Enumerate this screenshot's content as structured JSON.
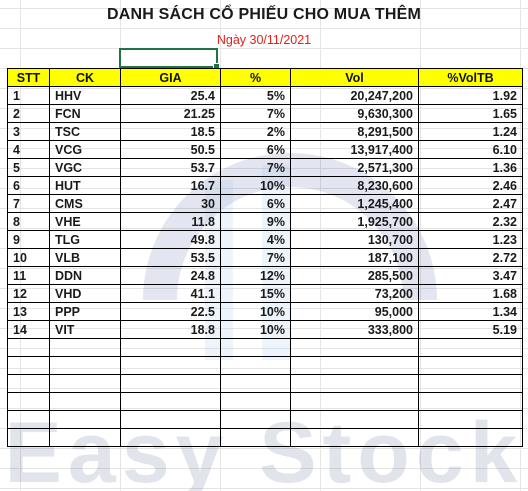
{
  "title": "DANH SÁCH CỔ PHIẾU CHO MUA THÊM",
  "date": "Ngày 30/11/2021",
  "watermark": "Easy Stock",
  "colors": {
    "header_bg": "#ffff00",
    "date_text": "#e0201a",
    "selection": "#217346"
  },
  "table": {
    "headers": [
      "STT",
      "CK",
      "GIA",
      "%",
      "Vol",
      "%VolTB"
    ],
    "rows": [
      [
        "1",
        "HHV",
        "25.4",
        "5%",
        "20,247,200",
        "1.92"
      ],
      [
        "2",
        "FCN",
        "21.25",
        "7%",
        "9,630,300",
        "1.65"
      ],
      [
        "3",
        "TSC",
        "18.5",
        "2%",
        "8,291,500",
        "1.24"
      ],
      [
        "4",
        "VCG",
        "50.5",
        "6%",
        "13,917,400",
        "6.10"
      ],
      [
        "5",
        "VGC",
        "53.7",
        "7%",
        "2,571,300",
        "1.36"
      ],
      [
        "6",
        "HUT",
        "16.7",
        "10%",
        "8,230,600",
        "2.46"
      ],
      [
        "7",
        "CMS",
        "30",
        "6%",
        "1,245,400",
        "2.47"
      ],
      [
        "8",
        "VHE",
        "11.8",
        "9%",
        "1,925,700",
        "2.32"
      ],
      [
        "9",
        "TLG",
        "49.8",
        "4%",
        "130,700",
        "1.23"
      ],
      [
        "10",
        "VLB",
        "53.5",
        "7%",
        "187,100",
        "2.72"
      ],
      [
        "11",
        "DDN",
        "24.8",
        "12%",
        "285,500",
        "3.47"
      ],
      [
        "12",
        "VHD",
        "41.1",
        "15%",
        "73,200",
        "1.68"
      ],
      [
        "13",
        "PPP",
        "22.5",
        "10%",
        "95,000",
        "1.34"
      ],
      [
        "14",
        "VIT",
        "18.8",
        "10%",
        "333,800",
        "5.19"
      ]
    ],
    "empty_rows": 6
  }
}
